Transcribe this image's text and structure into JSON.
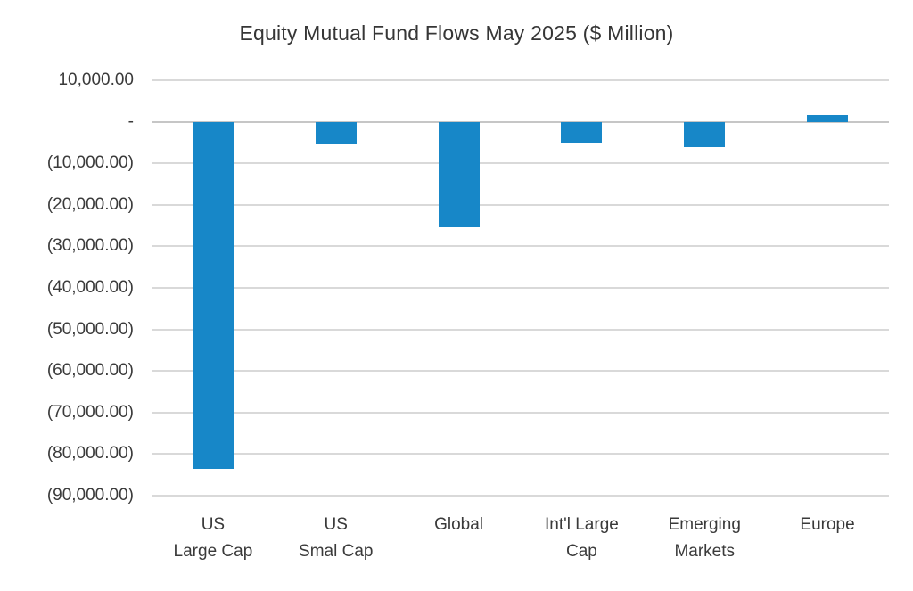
{
  "title": "Equity Mutual Fund Flows May 2025 ($ Million)",
  "colors": {
    "bar": "#1787c8",
    "gridline": "#d9d9d9",
    "zero_line": "#c6c6c6",
    "text": "#3a3a3a",
    "background": "#ffffff"
  },
  "chart_data": {
    "type": "bar",
    "title": "Equity Mutual Fund Flows May 2025 ($ Million)",
    "categories": [
      "US Large Cap",
      "US Smal Cap",
      "Global",
      "Int'l Large Cap",
      "Emerging Markets",
      "Europe"
    ],
    "category_label_lines": [
      [
        "US",
        "Large Cap"
      ],
      [
        "US",
        "Smal Cap"
      ],
      [
        "Global"
      ],
      [
        "Int'l Large",
        "Cap"
      ],
      [
        "Emerging",
        "Markets"
      ],
      [
        "Europe"
      ]
    ],
    "values": [
      -83500,
      -5400,
      -25500,
      -5000,
      -6000,
      1700
    ],
    "series_name": "Equity Mutual Fund Flows ($ Million)",
    "xlabel": "",
    "ylabel": "",
    "ylim": [
      -90000,
      10000
    ],
    "ytick_step": 10000,
    "ytick_labels": [
      "10,000.00",
      "-",
      "(10,000.00)",
      "(20,000.00)",
      "(30,000.00)",
      "(40,000.00)",
      "(50,000.00)",
      "(60,000.00)",
      "(70,000.00)",
      "(80,000.00)",
      "(90,000.00)"
    ],
    "grid": true,
    "legend_position": "none",
    "number_format": "accounting"
  }
}
